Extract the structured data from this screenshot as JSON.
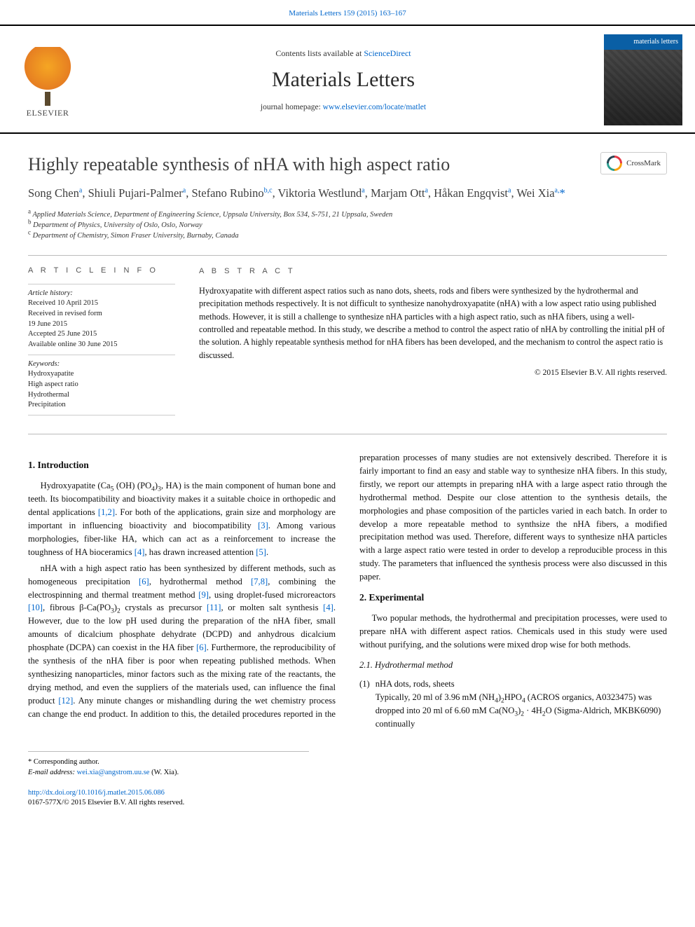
{
  "topbar": {
    "journal_issue": "Materials Letters 159 (2015) 163–167"
  },
  "masthead": {
    "publisher_label": "ELSEVIER",
    "contents_prefix": "Contents lists available at ",
    "contents_link": "ScienceDirect",
    "journal_title": "Materials Letters",
    "homepage_prefix": "journal homepage: ",
    "homepage_url": "www.elsevier.com/locate/matlet",
    "cover_title": "materials letters"
  },
  "article": {
    "title": "Highly repeatable synthesis of nHA with high aspect ratio",
    "crossmark_label": "CrossMark",
    "authors_html": "Song Chen<sup>a</sup>, Shiuli Pujari-Palmer<sup>a</sup>, Stefano Rubino<sup>b,c</sup>, Viktoria Westlund<sup>a</sup>, Marjam Ott<sup>a</sup>, Håkan Engqvist<sup>a</sup>, Wei Xia<sup>a,</sup><span class='corr'>*</span>",
    "affiliations": [
      {
        "key": "a",
        "text": "Applied Materials Science, Department of Engineering Science, Uppsala University, Box 534, S-751, 21 Uppsala, Sweden"
      },
      {
        "key": "b",
        "text": "Department of Physics, University of Oslo, Oslo, Norway"
      },
      {
        "key": "c",
        "text": "Department of Chemistry, Simon Fraser University, Burnaby, Canada"
      }
    ]
  },
  "info": {
    "heading": "A R T I C L E  I N F O",
    "history_label": "Article history:",
    "history": [
      "Received 10 April 2015",
      "Received in revised form",
      "19 June 2015",
      "Accepted 25 June 2015",
      "Available online 30 June 2015"
    ],
    "keywords_label": "Keywords:",
    "keywords": [
      "Hydroxyapatite",
      "High aspect ratio",
      "Hydrothermal",
      "Precipitation"
    ]
  },
  "abstract": {
    "heading": "A B S T R A C T",
    "text": "Hydroxyapatite with different aspect ratios such as nano dots, sheets, rods and fibers were synthesized by the hydrothermal and precipitation methods respectively. It is not difficult to synthesize nanohydroxyapatite (nHA) with a low aspect ratio using published methods. However, it is still a challenge to synthesize nHA particles with a high aspect ratio, such as nHA fibers, using a well-controlled and repeatable method. In this study, we describe a method to control the aspect ratio of nHA by controlling the initial pH of the solution. A highly repeatable synthesis method for nHA fibers has been developed, and the mechanism to control the aspect ratio is discussed.",
    "copyright": "© 2015 Elsevier B.V. All rights reserved."
  },
  "body": {
    "sec1_title": "1.  Introduction",
    "sec1_p1": "Hydroxyapatite (Ca<sub>5</sub> (OH) (PO<sub>4</sub>)<sub>3</sub>, HA) is the main component of human bone and teeth. Its biocompatibility and bioactivity makes it a suitable choice in orthopedic and dental applications <span class='ref'>[1,2]</span>. For both of the applications, grain size and morphology are important in influencing bioactivity and biocompatibility <span class='ref'>[3]</span>. Among various morphologies, fiber-like HA, which can act as a reinforcement to increase the toughness of HA bioceramics <span class='ref'>[4]</span>, has drawn increased attention <span class='ref'>[5]</span>.",
    "sec1_p2": "nHA with a high aspect ratio has been synthesized by different methods, such as homogeneous precipitation <span class='ref'>[6]</span>, hydrothermal method <span class='ref'>[7,8]</span>, combining the electrospinning and thermal treatment method <span class='ref'>[9]</span>, using droplet-fused microreactors <span class='ref'>[10]</span>, fibrous β-Ca(PO<sub>3</sub>)<sub>2</sub> crystals as precursor <span class='ref'>[11]</span>, or molten salt synthesis <span class='ref'>[4]</span>. However, due to the low pH used during the preparation of the nHA fiber, small amounts of dicalcium phosphate dehydrate (DCPD) and anhydrous dicalcium phosphate (DCPA) can coexist in the HA fiber <span class='ref'>[6]</span>. Furthermore, the reproducibility of the synthesis of the nHA fiber is poor when repeating published methods. When synthesizing nanoparticles, minor factors such as the mixing rate of the reactants, the drying method, and even the suppliers of the materials used, can influence the final product <span class='ref'>[12]</span>. Any minute changes or mishandling during the wet chemistry process can change the end product. In addition to this, the detailed procedures reported in the preparation processes of many studies are not extensively described. Therefore it is fairly important to find an easy and stable way to synthesize nHA fibers. In this study, firstly, we report our attempts in preparing nHA with a large aspect ratio through the hydrothermal method. Despite our close attention to the synthesis details, the morphologies and phase composition of the particles varied in each batch. In order to develop a more repeatable method to synthsize the nHA fibers, a modified precipitation method was used. Therefore, different ways to synthesize nHA particles with a large aspect ratio were tested in order to develop a reproducible process in this study. The parameters that influenced the synthesis process were also discussed in this paper.",
    "sec2_title": "2.  Experimental",
    "sec2_p1": "Two popular methods, the hydrothermal and precipitation processes, were used to prepare nHA with different aspect ratios. Chemicals used in this study were used without purifying, and the solutions were mixed drop wise for both methods.",
    "sec2_1_title": "2.1.  Hydrothermal method",
    "sec2_1_item_num": "(1)",
    "sec2_1_item_lead": "nHA dots, rods, sheets",
    "sec2_1_item_body": "Typically, 20 ml of 3.96 mM (NH<sub>4</sub>)<sub>2</sub>HPO<sub>4</sub> (ACROS organics, A0323475) was dropped into 20 ml of 6.60 mM Ca(NO<sub>3</sub>)<sub>2</sub> · 4H<sub>2</sub>O (Sigma-Aldrich, MKBK6090) continually"
  },
  "footer": {
    "corr_label": "* Corresponding author.",
    "email_label": "E-mail address:",
    "email": "wei.xia@angstrom.uu.se",
    "email_person": " (W. Xia).",
    "doi": "http://dx.doi.org/10.1016/j.matlet.2015.06.086",
    "rights": "0167-577X/© 2015 Elsevier B.V. All rights reserved."
  },
  "colors": {
    "link": "#0066cc",
    "rule": "#bbbbbb",
    "heading_gray": "#555555",
    "cover_blue": "#0a5fa5"
  }
}
